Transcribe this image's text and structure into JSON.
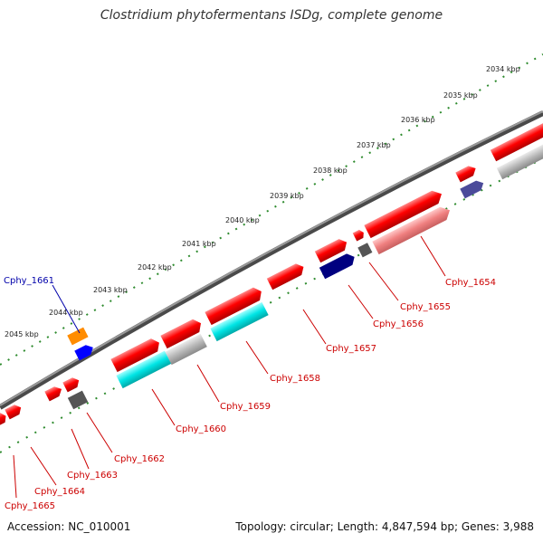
{
  "title": "Clostridium phytofermentans ISDg, complete genome",
  "footer": {
    "accession": "Accession: NC_010001",
    "topology": "Topology: circular; Length: 4,847,594 bp; Genes: 3,988"
  },
  "ruler_labels": [
    "2034 kbp",
    "2035 kbp",
    "2036 kbp",
    "2037 kbp",
    "2038 kbp",
    "2039 kbp",
    "2040 kbp",
    "2041 kbp",
    "2042 kbp",
    "2043 kbp",
    "2044 kbp",
    "2045 kbp"
  ],
  "gene_labels": [
    "Cphy_1654",
    "Cphy_1655",
    "Cphy_1656",
    "Cphy_1657",
    "Cphy_1658",
    "Cphy_1659",
    "Cphy_1660",
    "Cphy_1661",
    "Cphy_1662",
    "Cphy_1663",
    "Cphy_1664",
    "Cphy_1665"
  ],
  "colors": {
    "label_red": "#cc0000",
    "label_blue": "#0000aa",
    "backbone": "#777777",
    "tick_green": "#2e8b2e",
    "gene_red": "#ff1111",
    "gene_pink": "#f08080",
    "gene_gray": "#b8b8b8",
    "gene_cyan": "#00e5e5",
    "gene_navy": "#000080",
    "gene_darkgray": "#555555",
    "gene_purple": "#4b4b9a",
    "gene_orange": "#ff8c00",
    "gene_blue": "#0000ff"
  }
}
